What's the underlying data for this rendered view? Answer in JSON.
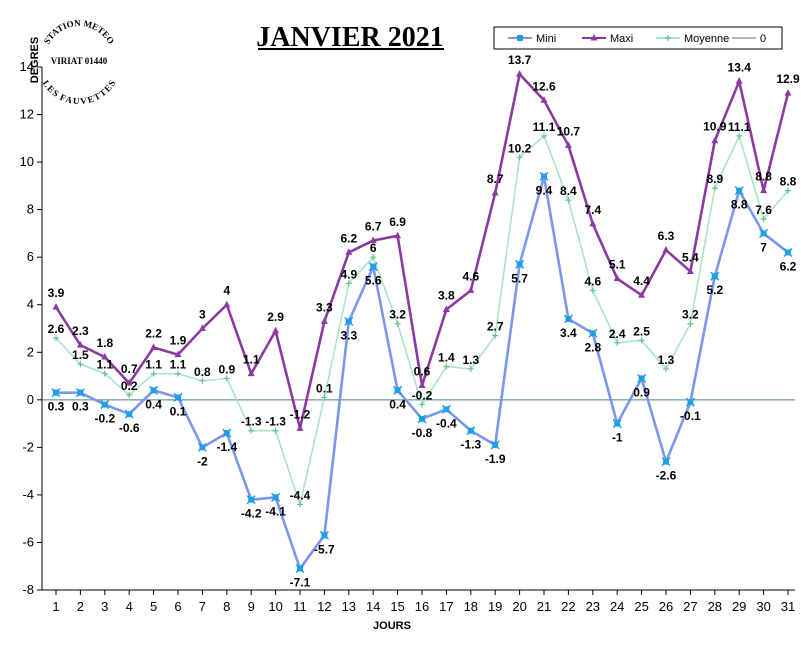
{
  "chart_data": {
    "type": "line",
    "title": "JANVIER 2021",
    "xlabel": "JOURS",
    "ylabel": "DEGRES",
    "ylim": [
      -8,
      14
    ],
    "yticks": [
      -8,
      -6,
      -4,
      -2,
      0,
      2,
      4,
      6,
      8,
      10,
      12,
      14
    ],
    "x": [
      1,
      2,
      3,
      4,
      5,
      6,
      7,
      8,
      9,
      10,
      11,
      12,
      13,
      14,
      15,
      16,
      17,
      18,
      19,
      20,
      21,
      22,
      23,
      24,
      25,
      26,
      27,
      28,
      29,
      30,
      31
    ],
    "legend_position": "top-right",
    "grid": false,
    "series": [
      {
        "name": "Mini",
        "color": "#7b96ec",
        "marker_color": "#1f9fe6",
        "marker": "x",
        "values": [
          0.3,
          0.3,
          -0.2,
          -0.6,
          0.4,
          0.1,
          -2,
          -1.4,
          -4.2,
          -4.1,
          -7.1,
          -5.7,
          3.3,
          5.6,
          0.4,
          -0.8,
          -0.4,
          -1.3,
          -1.9,
          5.7,
          9.4,
          3.4,
          2.8,
          -1,
          0.9,
          -2.6,
          -0.1,
          5.2,
          8.8,
          7,
          6.2
        ]
      },
      {
        "name": "Maxi",
        "color": "#8a3aa0",
        "marker_color": "#8a3aa0",
        "marker": "triangle",
        "values": [
          3.9,
          2.3,
          1.8,
          0.7,
          2.2,
          1.9,
          3,
          4,
          1.1,
          2.9,
          -1.2,
          3.3,
          6.2,
          6.7,
          6.9,
          0.6,
          3.8,
          4.6,
          8.7,
          13.7,
          12.6,
          10.7,
          7.4,
          5.1,
          4.4,
          6.3,
          5.4,
          10.9,
          13.4,
          8.8,
          12.9
        ]
      },
      {
        "name": "Moyenne",
        "color": "#a8e6c4",
        "marker_color": "#66c090",
        "marker": "plus",
        "values": [
          2.6,
          1.5,
          1.1,
          0.2,
          1.1,
          1.1,
          0.8,
          0.9,
          -1.3,
          -1.3,
          -4.4,
          0.1,
          4.9,
          6,
          3.2,
          -0.2,
          1.4,
          1.3,
          2.7,
          10.2,
          11.1,
          8.4,
          4.6,
          2.4,
          2.5,
          1.3,
          3.2,
          8.9,
          11.1,
          7.6,
          8.8
        ]
      },
      {
        "name": "0",
        "color": "#4a7f86",
        "marker": "none",
        "values": [
          0,
          0,
          0,
          0,
          0,
          0,
          0,
          0,
          0,
          0,
          0,
          0,
          0,
          0,
          0,
          0,
          0,
          0,
          0,
          0,
          0,
          0,
          0,
          0,
          0,
          0,
          0,
          0,
          0,
          0,
          0
        ]
      }
    ]
  },
  "stamp": {
    "top_text": "STATION METEO",
    "middle_text": "VIRIAT 01440",
    "bottom_text": "LES FAUVETTES"
  }
}
